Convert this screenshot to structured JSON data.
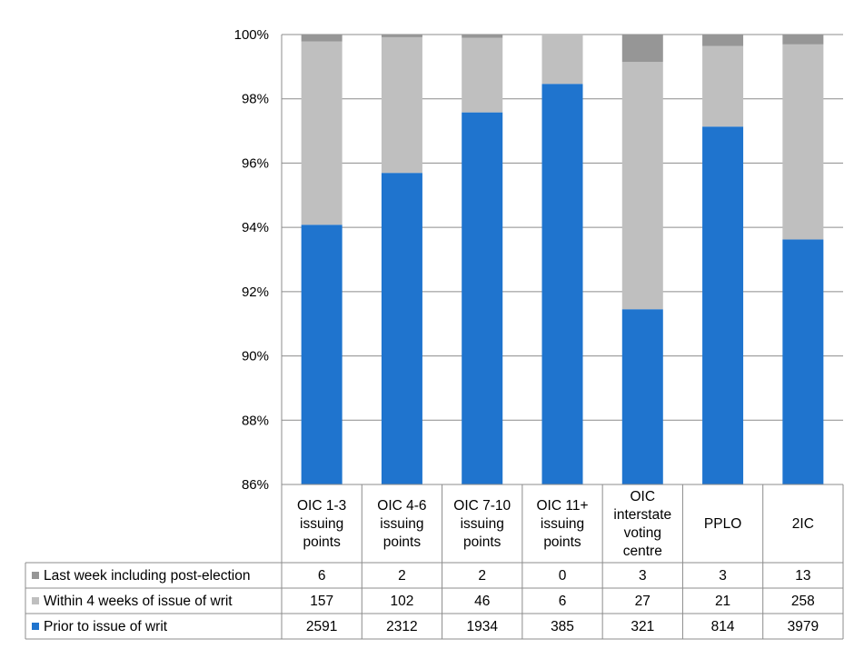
{
  "chart_data": {
    "type": "bar",
    "stacked": true,
    "normalized": true,
    "title": "",
    "xlabel": "",
    "ylabel": "",
    "ylim": [
      86,
      100
    ],
    "y_ticks": [
      "86%",
      "88%",
      "90%",
      "92%",
      "94%",
      "96%",
      "98%",
      "100%"
    ],
    "y_tick_values": [
      86,
      88,
      90,
      92,
      94,
      96,
      98,
      100
    ],
    "grid": "horizontal",
    "legend": "data-table",
    "categories": [
      [
        "OIC 1-3",
        "issuing",
        "points"
      ],
      [
        "OIC 4-6",
        "issuing",
        "points"
      ],
      [
        "OIC 7-10",
        "issuing",
        "points"
      ],
      [
        "OIC 11+",
        "issuing",
        "points"
      ],
      [
        "OIC",
        "interstate",
        "voting",
        "centre"
      ],
      [
        "PPLO"
      ],
      [
        "2IC"
      ]
    ],
    "series": [
      {
        "name": "Prior to issue of writ",
        "color": "#1f74ce",
        "values": [
          2591,
          2312,
          1934,
          385,
          321,
          814,
          3979
        ]
      },
      {
        "name": "Within 4 weeks of issue of writ",
        "color": "#bfbfbf",
        "values": [
          157,
          102,
          46,
          6,
          27,
          21,
          258
        ]
      },
      {
        "name": "Last week including post-election",
        "color": "#969696",
        "values": [
          6,
          2,
          2,
          0,
          3,
          3,
          13
        ]
      }
    ],
    "table_rows_order": [
      "Last week including post-election",
      "Within 4 weeks of issue of writ",
      "Prior to issue of writ"
    ]
  }
}
